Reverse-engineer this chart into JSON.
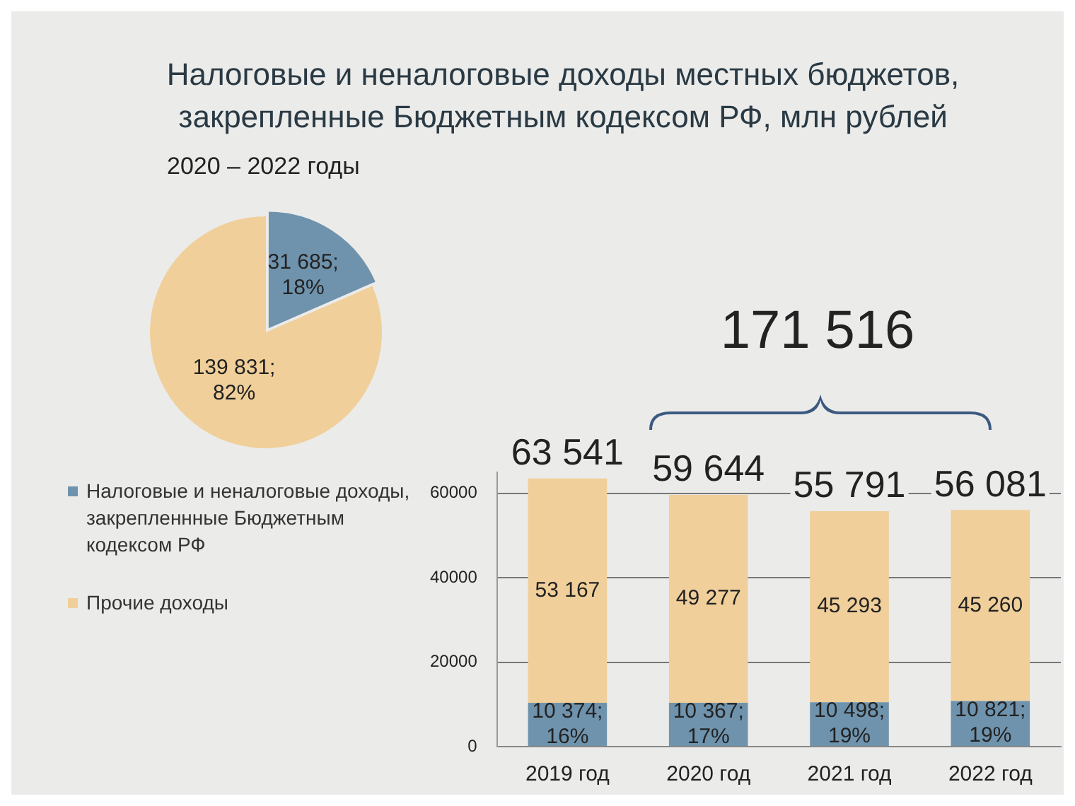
{
  "chart_data": [
    {
      "type": "pie",
      "title": "Налоговые и неналоговые доходы местных бюджетов, закрепленные Бюджетным кодексом РФ, млн рублей",
      "subtitle": "2020 – 2022 годы",
      "categories": [
        "Налоговые и неналоговые доходы, закрепленнные Бюджетным кодексом  РФ",
        "Прочие доходы"
      ],
      "values": [
        31685,
        139831
      ],
      "colors": [
        "#6f93ad",
        "#f0cf9a"
      ],
      "value_labels": [
        "31 685;\n18%",
        "139 831;\n82%"
      ],
      "legend": "bottom"
    },
    {
      "type": "bar",
      "stacked": true,
      "categories": [
        "2019 год",
        "2020 год",
        "2021 год",
        "2022 год"
      ],
      "series": [
        {
          "color": "#6f93ad",
          "values": [
            10374,
            10367,
            10498,
            10821
          ],
          "value_labels": [
            "10 374;\n16%",
            "10 367;\n17%",
            "10 498;\n19%",
            "10 821;\n19%"
          ]
        },
        {
          "color": "#f0cf9a",
          "values": [
            53167,
            49277,
            45293,
            45260
          ],
          "value_labels": [
            "53 167",
            "49 277",
            "45 293",
            "45 260"
          ]
        }
      ],
      "ylim": [
        0,
        65000
      ],
      "yticks": [
        0,
        20000,
        40000,
        60000
      ],
      "grid": "y",
      "totals": [
        "63 541",
        "59 644",
        "55 791",
        "56 081"
      ],
      "annotations": [
        "171 516"
      ]
    }
  ]
}
